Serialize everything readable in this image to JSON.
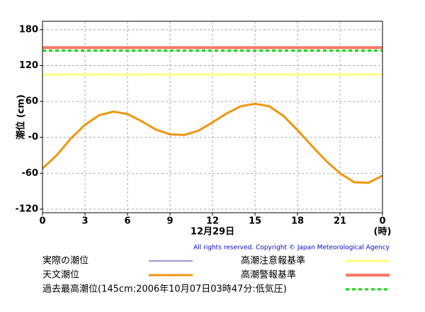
{
  "chart_data": {
    "type": "line",
    "y_label": "潮位 (cm)",
    "x_label": "12月29日",
    "x_unit": "(時)",
    "copyright": "All rights reserved. Copyright © Japan Meteorological Agency",
    "x": [
      0,
      1,
      2,
      3,
      4,
      5,
      6,
      7,
      8,
      9,
      10,
      11,
      12,
      13,
      14,
      15,
      16,
      17,
      18,
      19,
      20,
      21,
      22,
      23,
      24
    ],
    "xlim": [
      0,
      24
    ],
    "xticks": [
      0,
      3,
      6,
      9,
      12,
      15,
      18,
      21,
      {
        "value": 24,
        "label": "0"
      }
    ],
    "ylim": [
      -126,
      194
    ],
    "yticks": [
      180,
      120,
      60,
      {
        "value": 0,
        "label": "-0"
      },
      -60,
      -120
    ],
    "grid": true,
    "series": [
      {
        "name": "実際の潮位",
        "color": "#3333aa",
        "values": [
          null,
          null,
          null,
          null,
          null,
          null,
          null,
          null,
          null,
          null,
          null,
          null,
          null,
          null,
          null,
          null,
          null,
          null,
          null,
          null,
          null,
          null,
          null,
          null,
          null
        ]
      },
      {
        "name": "天文潮位",
        "color": "#f0960a",
        "values": [
          -52,
          -30,
          -2,
          21,
          37,
          43,
          39,
          27,
          13,
          5,
          4,
          11,
          25,
          40,
          52,
          56,
          52,
          36,
          12,
          -14,
          -39,
          -60,
          -75,
          -76,
          -64
        ]
      }
    ],
    "reference_lines": [
      {
        "name": "高潮注意報基準",
        "value": 105,
        "color": "#ffff99",
        "dashed": false
      },
      {
        "name": "高潮警報基準",
        "value": 150,
        "color": "#ff7766",
        "dashed": false
      },
      {
        "name": "過去最高潮位(145cm:2006年10月07日03時47分:低気圧)",
        "value": 145,
        "color": "#00dd00",
        "dashed": true
      }
    ]
  }
}
